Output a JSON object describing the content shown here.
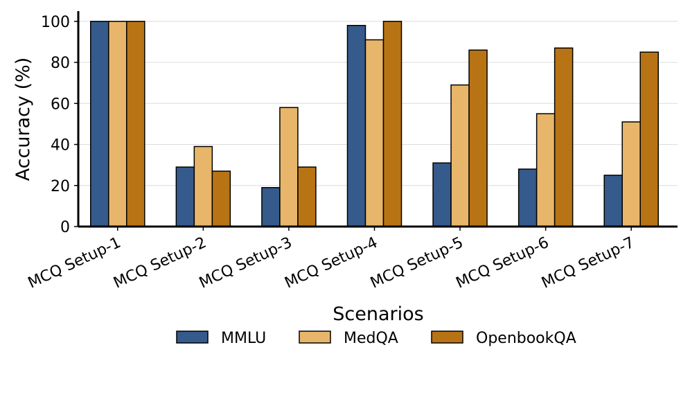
{
  "chart_data": {
    "type": "bar",
    "title": "",
    "xlabel": "Scenarios",
    "ylabel": "Accuracy (%)",
    "ylim": [
      0,
      105
    ],
    "yticks": [
      0,
      20,
      40,
      60,
      80,
      100
    ],
    "grid": "horizontal",
    "legend_position": "bottom",
    "categories": [
      "MCQ Setup-1",
      "MCQ Setup-2",
      "MCQ Setup-3",
      "MCQ Setup-4",
      "MCQ Setup-5",
      "MCQ Setup-6",
      "MCQ Setup-7"
    ],
    "series": [
      {
        "name": "MMLU",
        "color": "#355a8c",
        "values": [
          100,
          29,
          19,
          98,
          31,
          28,
          25
        ]
      },
      {
        "name": "MedQA",
        "color": "#e8b66a",
        "values": [
          100,
          39,
          58,
          91,
          69,
          55,
          51
        ]
      },
      {
        "name": "OpenbookQA",
        "color": "#b87414",
        "values": [
          100,
          27,
          29,
          100,
          86,
          87,
          85
        ]
      }
    ]
  }
}
